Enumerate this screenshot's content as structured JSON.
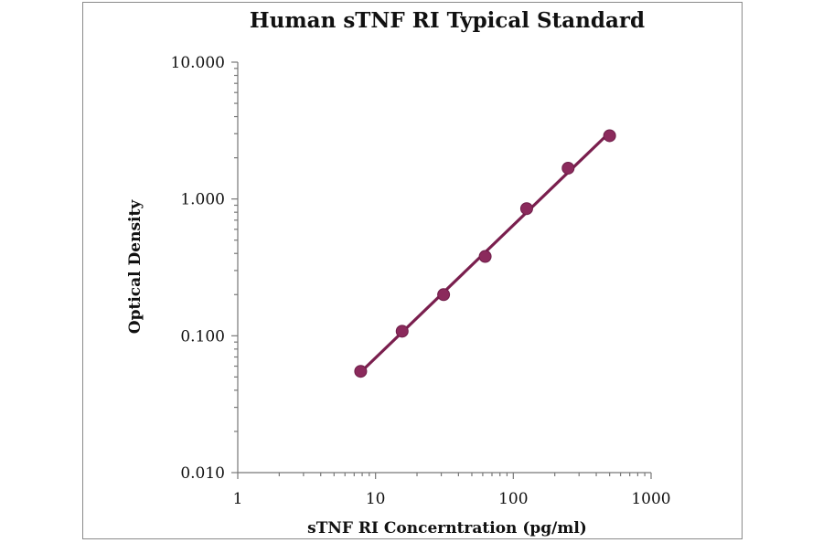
{
  "chart_data": {
    "type": "scatter",
    "title": "Human sTNF RI Typical Standard",
    "xlabel": "sTNF RI Concerntration (pg/ml)",
    "ylabel": "Optical Density",
    "x_scale": "log",
    "y_scale": "log",
    "xlim": [
      1,
      1000
    ],
    "ylim": [
      0.01,
      10
    ],
    "x_ticks": [
      1,
      10,
      100,
      1000
    ],
    "x_tick_labels": [
      "1",
      "10",
      "100",
      "1000"
    ],
    "y_ticks": [
      0.01,
      0.1,
      1,
      10
    ],
    "y_tick_labels": [
      "0.010",
      "0.100",
      "1.000",
      "10.000"
    ],
    "grid": false,
    "legend": "none",
    "series": [
      {
        "x": [
          7.8,
          15.6,
          31.2,
          62.5,
          125,
          250,
          500
        ],
        "y": [
          0.055,
          0.108,
          0.2,
          0.38,
          0.85,
          1.68,
          2.9
        ],
        "marker": "circle",
        "fit_line": true,
        "color": "#8b2a5c"
      }
    ]
  }
}
